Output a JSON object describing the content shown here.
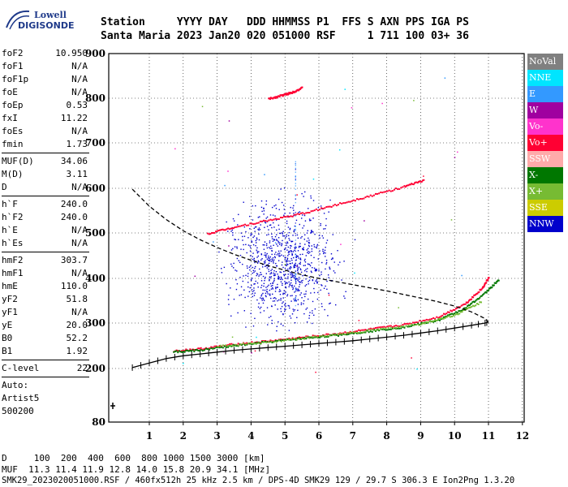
{
  "logo": {
    "line1": "Lowell",
    "line2": "DIGISONDE"
  },
  "header": {
    "line1": "Station     YYYY DAY   DDD HHMMSS P1  FFS S AXN PPS IGA PS",
    "line2": "Santa Maria 2023 Jan20 020 051000 RSF     1 711 100 03+ 36"
  },
  "params": [
    {
      "group": [
        {
          "k": "foF2",
          "v": "10.950"
        },
        {
          "k": "foF1",
          "v": "N/A"
        },
        {
          "k": "foF1p",
          "v": "N/A"
        },
        {
          "k": "foE",
          "v": "N/A"
        },
        {
          "k": "foEp",
          "v": "0.53"
        },
        {
          "k": "fxI",
          "v": "11.22"
        },
        {
          "k": "foEs",
          "v": "N/A"
        },
        {
          "k": "fmin",
          "v": "1.73"
        }
      ]
    },
    {
      "group": [
        {
          "k": "MUF(D)",
          "v": "34.06"
        },
        {
          "k": "M(D)",
          "v": "3.11"
        },
        {
          "k": "D",
          "v": "N/A"
        }
      ]
    },
    {
      "group": [
        {
          "k": "h`F",
          "v": "240.0"
        },
        {
          "k": "h`F2",
          "v": "240.0"
        },
        {
          "k": "h`E",
          "v": "N/A"
        },
        {
          "k": "h`Es",
          "v": "N/A"
        }
      ]
    },
    {
      "group": [
        {
          "k": "hmF2",
          "v": "303.7"
        },
        {
          "k": "hmF1",
          "v": "N/A"
        },
        {
          "k": "hmE",
          "v": "110.0"
        },
        {
          "k": "yF2",
          "v": "51.8"
        },
        {
          "k": "yF1",
          "v": "N/A"
        },
        {
          "k": "yE",
          "v": "20.0"
        },
        {
          "k": "B0",
          "v": "52.2"
        },
        {
          "k": "B1",
          "v": "1.92"
        }
      ]
    },
    {
      "group": [
        {
          "k": "C-level",
          "v": "22"
        }
      ]
    }
  ],
  "auto_lines": [
    "Auto:",
    "Artist5",
    "500200"
  ],
  "legend": [
    {
      "label": "NoVal",
      "color": "#808080"
    },
    {
      "label": "NNE",
      "color": "#00e5ff"
    },
    {
      "label": "E",
      "color": "#3399ff"
    },
    {
      "label": "W",
      "color": "#a000a0"
    },
    {
      "label": "Vo-",
      "color": "#ff33cc"
    },
    {
      "label": "Vo+",
      "color": "#ff0033"
    },
    {
      "label": "SSW",
      "color": "#ffaaaa"
    },
    {
      "label": "X-",
      "color": "#007700"
    },
    {
      "label": "X+",
      "color": "#77bb33"
    },
    {
      "label": "SSE",
      "color": "#cccc00"
    },
    {
      "label": "NNW",
      "color": "#0000cc"
    }
  ],
  "footer": {
    "d_line": "D     100  200  400  600  800 1000 1500 3000 [km]",
    "muf_line": "MUF  11.3 11.4 11.9 12.8 14.0 15.8 20.9 34.1 [MHz]",
    "info_line": "SMK29_2023020051000.RSF / 460fx512h 25 kHz 2.5 km / DPS-4D SMK29 129 / 29.7 S 306.3 E Ion2Png 1.3.20"
  },
  "chart_data": {
    "type": "scatter",
    "xlabel": "",
    "ylabel": "",
    "xlim": [
      0.5,
      12
    ],
    "ylim": [
      80,
      900
    ],
    "x_ticks": [
      1,
      2,
      3,
      4,
      5,
      6,
      7,
      8,
      9,
      10,
      11,
      12
    ],
    "y_ticks": [
      80,
      200,
      300,
      400,
      500,
      600,
      700,
      800,
      900
    ],
    "grid": true,
    "legend_position": "right",
    "series": [
      {
        "color": "#ff0033",
        "x": [
          1.7,
          2.5,
          3.5,
          4.5,
          5.5,
          6.5,
          7.5,
          8.5,
          9.5,
          10.3,
          10.8,
          11.0
        ],
        "y": [
          240,
          245,
          255,
          262,
          270,
          278,
          288,
          298,
          315,
          345,
          380,
          405
        ]
      },
      {
        "color": "#007700",
        "x": [
          1.7,
          2.5,
          3.5,
          4.5,
          5.5,
          6.5,
          7.5,
          8.5,
          9.5,
          10.3,
          10.9,
          11.3
        ],
        "y": [
          238,
          242,
          252,
          260,
          268,
          275,
          284,
          293,
          308,
          335,
          370,
          400
        ]
      },
      {
        "color": "#77bb33",
        "x": [
          3.0,
          4.5,
          6.0,
          7.5,
          9.0,
          10.0,
          10.8
        ],
        "y": [
          250,
          260,
          272,
          285,
          300,
          320,
          350
        ]
      },
      {
        "color": "#ff0033",
        "x": [
          2.7,
          3.5,
          4.5,
          5.5,
          6.5,
          7.5,
          8.5,
          9.1
        ],
        "y": [
          500,
          515,
          530,
          545,
          565,
          585,
          605,
          620
        ]
      },
      {
        "color": "#ff0033",
        "x": [
          4.5,
          4.9,
          5.2,
          5.5
        ],
        "y": [
          800,
          808,
          815,
          825
        ]
      }
    ],
    "profile_line": {
      "x": [
        0.5,
        1.0,
        1.5,
        2.0,
        2.5,
        3.0,
        3.5,
        4.0,
        4.5,
        5.0,
        5.5,
        6.0,
        6.5,
        7.0,
        7.5,
        8.0,
        8.5,
        9.0,
        9.5,
        10.0,
        10.5,
        10.9,
        11.0
      ],
      "y": [
        598,
        560,
        530,
        505,
        485,
        468,
        453,
        440,
        428,
        418,
        408,
        400,
        393,
        386,
        379,
        372,
        364,
        356,
        348,
        338,
        325,
        310,
        302
      ]
    },
    "virtual_height_curve": {
      "x": [
        0.5,
        1.0,
        1.5,
        2.0,
        2.5,
        3.0,
        3.5,
        4.0,
        4.5,
        5.0,
        5.5,
        6.0,
        6.5,
        7.0,
        7.5,
        8.0,
        8.5,
        9.0,
        9.5,
        10.0,
        10.5,
        10.9,
        11.0
      ],
      "y": [
        202,
        212,
        222,
        228,
        232,
        236,
        240,
        243,
        246,
        249,
        252,
        255,
        258,
        261,
        265,
        269,
        273,
        278,
        283,
        289,
        295,
        300,
        302
      ]
    },
    "nnw_cloud": {
      "x_range": [
        3.8,
        6.2
      ],
      "y_range": [
        330,
        540
      ]
    }
  }
}
